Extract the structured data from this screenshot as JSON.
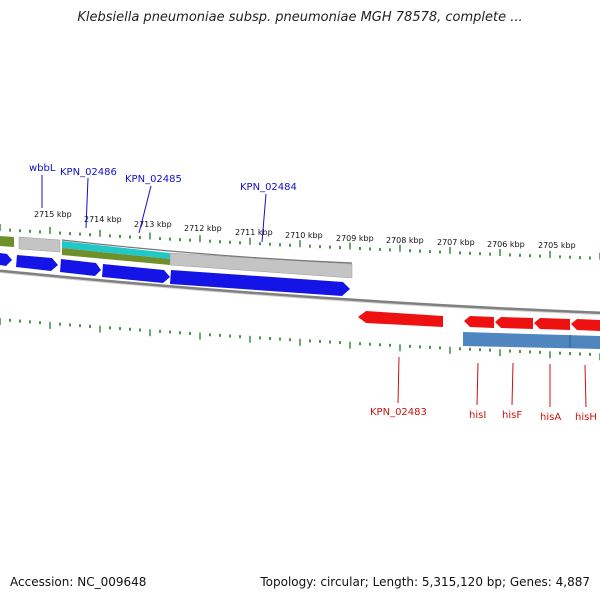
{
  "title": "Klebsiella pneumoniae subsp. pneumoniae MGH 78578, complete ...",
  "accession": "Accession: NC_009648",
  "summary": "Topology: circular; Length: 5,315,120 bp; Genes: 4,887",
  "scale_labels": [
    "2715 kbp",
    "2714 kbp",
    "2713 kbp",
    "2712 kbp",
    "2711 kbp",
    "2710 kbp",
    "2709 kbp",
    "2708 kbp",
    "2707 kbp",
    "2706 kbp",
    "2705 kbp"
  ],
  "forward_gene_labels": [
    "wbbL",
    "KPN_02486",
    "KPN_02485",
    "KPN_02484"
  ],
  "reverse_gene_labels": [
    "KPN_02483",
    "hisI",
    "hisF",
    "hisA",
    "hisH"
  ],
  "colors": {
    "forward_label": "#1010c8",
    "reverse_label": "#cc1111",
    "forward_gene": "#1414e6",
    "reverse_gene": "#ee1111",
    "tick": "#1f7a1f",
    "backbone": "#808080",
    "feature_gray": "#c4c4c4",
    "feature_cyan": "#22c8c8",
    "feature_olive": "#6f8f2a",
    "feature_steel": "#4f86c0"
  }
}
